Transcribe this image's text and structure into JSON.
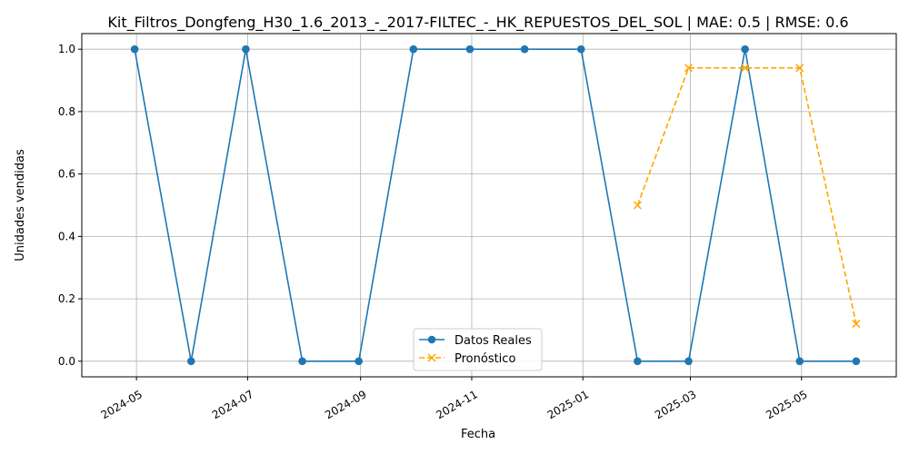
{
  "chart_data": {
    "type": "line",
    "title": "Kit_Filtros_Dongfeng_H30_1.6_2013_-_2017-FILTEC_-_HK_REPUESTOS_DEL_SOL | MAE: 0.5 | RMSE: 0.6",
    "xlabel": "Fecha",
    "ylabel": "Unidades vendidas",
    "x_type": "date",
    "xlim": [
      "2024-04-01",
      "2025-06-22"
    ],
    "ylim": [
      -0.05,
      1.05
    ],
    "x_ticks": [
      "2024-05",
      "2024-07",
      "2024-09",
      "2024-11",
      "2025-01",
      "2025-03",
      "2025-05"
    ],
    "y_ticks": [
      "0.0",
      "0.2",
      "0.4",
      "0.6",
      "0.8",
      "1.0"
    ],
    "grid": true,
    "legend_position": "bottom-center",
    "series": [
      {
        "name": "Datos Reales",
        "color": "#1f77b4",
        "line_style": "solid",
        "marker": "circle",
        "x": [
          "2024-04-30",
          "2024-05-31",
          "2024-06-30",
          "2024-07-31",
          "2024-08-31",
          "2024-09-30",
          "2024-10-31",
          "2024-11-30",
          "2024-12-31",
          "2025-01-31",
          "2025-02-28",
          "2025-03-31",
          "2025-04-30",
          "2025-05-31"
        ],
        "values": [
          1,
          0,
          1,
          0,
          0,
          1,
          1,
          1,
          1,
          0,
          0,
          1,
          0,
          0
        ]
      },
      {
        "name": "Pronóstico",
        "color": "#ffa500",
        "line_style": "dashed",
        "marker": "x",
        "x": [
          "2025-01-31",
          "2025-02-28",
          "2025-03-31",
          "2025-04-30",
          "2025-05-31"
        ],
        "values": [
          0.5,
          0.94,
          0.94,
          0.94,
          0.12
        ]
      }
    ]
  }
}
